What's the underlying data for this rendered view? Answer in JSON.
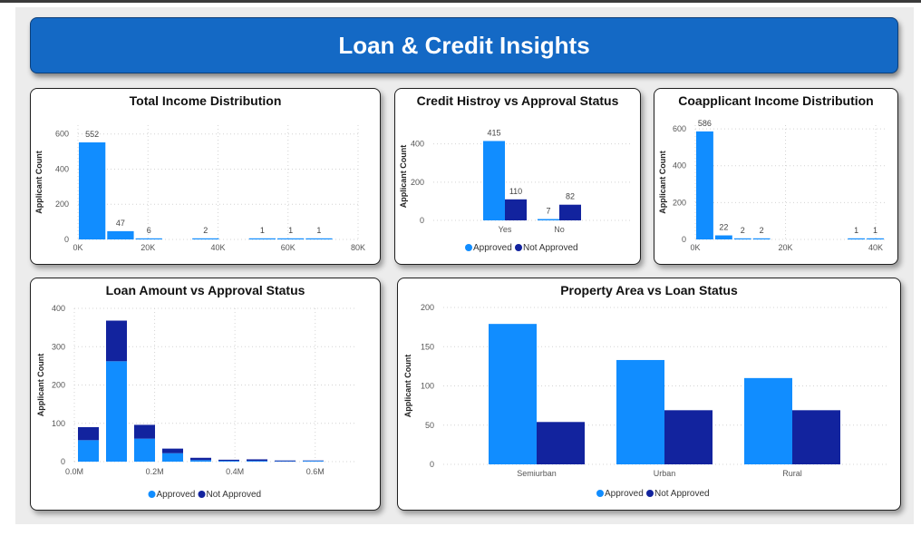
{
  "dashboard": {
    "title": "Loan & Credit Insights"
  },
  "colors": {
    "approved": "#118dff",
    "not_approved": "#12239e",
    "banner": "#1469c5"
  },
  "chart_data": [
    {
      "id": "total-income",
      "type": "bar",
      "title": "Total Income Distribution",
      "ylabel": "Applicant Count",
      "ylim": [
        0,
        650
      ],
      "xlim": [
        0,
        80000
      ],
      "yticks": [
        0,
        200,
        400,
        600
      ],
      "xticks": [
        {
          "v": 0,
          "label": "0K"
        },
        {
          "v": 20000,
          "label": "20K"
        },
        {
          "v": 40000,
          "label": "40K"
        },
        {
          "v": 60000,
          "label": "60K"
        },
        {
          "v": 80000,
          "label": "80K"
        }
      ],
      "bin_width": 8100,
      "bars": [
        {
          "x0": 0,
          "value": 552
        },
        {
          "x0": 8100,
          "value": 47
        },
        {
          "x0": 16200,
          "value": 6
        },
        {
          "x0": 24300,
          "value": 0
        },
        {
          "x0": 32400,
          "value": 2
        },
        {
          "x0": 40500,
          "value": 0
        },
        {
          "x0": 48600,
          "value": 1
        },
        {
          "x0": 56700,
          "value": 1
        },
        {
          "x0": 64800,
          "value": 1
        }
      ],
      "labels": [
        "552",
        "47",
        "6",
        "",
        "2",
        "",
        "1",
        "1",
        "1"
      ]
    },
    {
      "id": "credit-history",
      "type": "bar",
      "title": "Credit Histroy vs Approval Status",
      "ylabel": "Applicant Count",
      "ylim": [
        0,
        460
      ],
      "yticks": [
        0,
        200,
        400
      ],
      "categories": [
        "Yes",
        "No"
      ],
      "series": [
        {
          "name": "Approved",
          "values": [
            415,
            7
          ]
        },
        {
          "name": "Not Approved",
          "values": [
            110,
            82
          ]
        }
      ]
    },
    {
      "id": "coapplicant-income",
      "type": "bar",
      "title": "Coapplicant Income Distribution",
      "ylabel": "Applicant Count",
      "ylim": [
        0,
        620
      ],
      "xlim": [
        0,
        42000
      ],
      "yticks": [
        0,
        200,
        400,
        600
      ],
      "xticks": [
        {
          "v": 0,
          "label": "0K"
        },
        {
          "v": 20000,
          "label": "20K"
        },
        {
          "v": 40000,
          "label": "40K"
        }
      ],
      "bin_width": 4200,
      "bars": [
        {
          "x0": 0,
          "value": 586
        },
        {
          "x0": 4200,
          "value": 22
        },
        {
          "x0": 8400,
          "value": 2
        },
        {
          "x0": 12600,
          "value": 2
        },
        {
          "x0": 33600,
          "value": 1
        },
        {
          "x0": 37800,
          "value": 1
        }
      ],
      "labels": [
        "586",
        "22",
        "2",
        "2",
        "1",
        "1"
      ]
    },
    {
      "id": "loan-amount",
      "type": "bar",
      "title": "Loan Amount vs Approval Status",
      "ylabel": "Applicant Count",
      "ylim": [
        0,
        400
      ],
      "xlim": [
        0,
        700000
      ],
      "yticks": [
        0,
        100,
        200,
        300,
        400
      ],
      "xticks": [
        {
          "v": 0,
          "label": "0.0M"
        },
        {
          "v": 200000,
          "label": "0.2M"
        },
        {
          "v": 400000,
          "label": "0.4M"
        },
        {
          "v": 600000,
          "label": "0.6M"
        }
      ],
      "bin_width": 70000,
      "bins": [
        {
          "x0": 0,
          "approved": 56,
          "not_approved": 34
        },
        {
          "x0": 70000,
          "approved": 262,
          "not_approved": 106
        },
        {
          "x0": 140000,
          "approved": 60,
          "not_approved": 36
        },
        {
          "x0": 210000,
          "approved": 22,
          "not_approved": 12
        },
        {
          "x0": 280000,
          "approved": 4,
          "not_approved": 6
        },
        {
          "x0": 350000,
          "approved": 2,
          "not_approved": 3
        },
        {
          "x0": 420000,
          "approved": 2,
          "not_approved": 4
        },
        {
          "x0": 490000,
          "approved": 1,
          "not_approved": 2
        },
        {
          "x0": 560000,
          "approved": 2,
          "not_approved": 1
        }
      ],
      "series": [
        {
          "name": "Approved"
        },
        {
          "name": "Not Approved"
        }
      ]
    },
    {
      "id": "property-area",
      "type": "bar",
      "title": "Property Area vs Loan Status",
      "ylabel": "Applicant Count",
      "ylim": [
        0,
        200
      ],
      "yticks": [
        0,
        50,
        100,
        150,
        200
      ],
      "categories": [
        "Semiurban",
        "Urban",
        "Rural"
      ],
      "series": [
        {
          "name": "Approved",
          "values": [
            179,
            133,
            110
          ]
        },
        {
          "name": "Not Approved",
          "values": [
            54,
            69,
            69
          ]
        }
      ]
    }
  ]
}
